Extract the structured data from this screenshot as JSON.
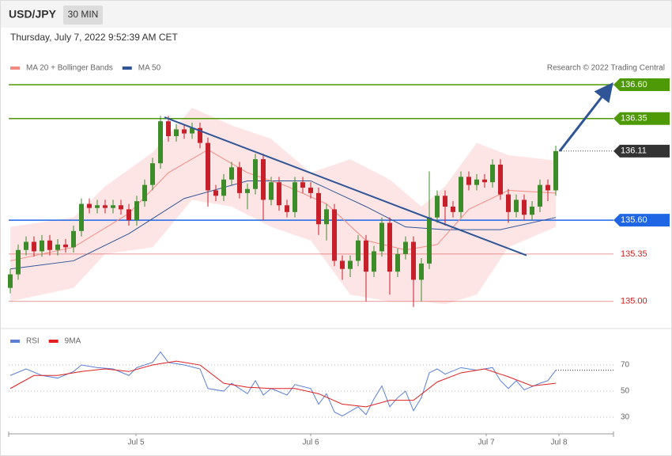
{
  "header": {
    "symbol": "USD/JPY",
    "interval": "30 MIN",
    "datetime": "Thursday, July 7, 2022 9:52:39 AM CET"
  },
  "chart_data": [
    {
      "type": "candlestick",
      "attribution": "Research © 2022 Trading Central",
      "legend": [
        {
          "name": "MA 20 + Bollinger Bands",
          "color": "#f28b82"
        },
        {
          "name": "MA 50",
          "color": "#2f5597"
        }
      ],
      "up_color": "#3c8c2a",
      "down_color": "#c8202a",
      "xlim": [
        -0.2,
        76.3
      ],
      "ylim": [
        134.8,
        136.67
      ],
      "ohlc": [
        [
          135.1,
          135.24,
          135.06,
          135.2
        ],
        [
          135.2,
          135.42,
          135.16,
          135.38
        ],
        [
          135.38,
          135.48,
          135.34,
          135.44
        ],
        [
          135.44,
          135.48,
          135.33,
          135.37
        ],
        [
          135.37,
          135.49,
          135.33,
          135.45
        ],
        [
          135.45,
          135.49,
          135.34,
          135.38
        ],
        [
          135.38,
          135.46,
          135.34,
          135.42
        ],
        [
          135.42,
          135.46,
          135.36,
          135.4
        ],
        [
          135.4,
          135.56,
          135.36,
          135.52
        ],
        [
          135.52,
          135.76,
          135.48,
          135.72
        ],
        [
          135.72,
          135.76,
          135.65,
          135.69
        ],
        [
          135.69,
          135.75,
          135.65,
          135.71
        ],
        [
          135.71,
          135.75,
          135.65,
          135.69
        ],
        [
          135.69,
          135.75,
          135.65,
          135.71
        ],
        [
          135.71,
          135.75,
          135.64,
          135.68
        ],
        [
          135.68,
          135.72,
          135.56,
          135.6
        ],
        [
          135.6,
          135.78,
          135.56,
          135.74
        ],
        [
          135.74,
          135.9,
          135.7,
          135.86
        ],
        [
          135.86,
          136.06,
          135.82,
          136.02
        ],
        [
          136.02,
          136.37,
          135.98,
          136.33
        ],
        [
          136.33,
          136.37,
          136.18,
          136.22
        ],
        [
          136.22,
          136.31,
          136.18,
          136.27
        ],
        [
          136.27,
          136.31,
          136.2,
          136.24
        ],
        [
          136.24,
          136.32,
          136.2,
          136.28
        ],
        [
          136.28,
          136.32,
          136.13,
          136.17
        ],
        [
          136.17,
          136.21,
          135.7,
          135.82
        ],
        [
          135.82,
          135.86,
          135.74,
          135.78
        ],
        [
          135.78,
          135.94,
          135.74,
          135.9
        ],
        [
          135.9,
          136.03,
          135.86,
          135.99
        ],
        [
          135.99,
          136.03,
          135.76,
          135.8
        ],
        [
          135.8,
          135.87,
          135.68,
          135.83
        ],
        [
          135.83,
          136.09,
          135.79,
          136.05
        ],
        [
          136.05,
          136.09,
          135.6,
          135.75
        ],
        [
          135.75,
          135.92,
          135.71,
          135.88
        ],
        [
          135.88,
          135.92,
          135.67,
          135.71
        ],
        [
          135.71,
          135.75,
          135.62,
          135.66
        ],
        [
          135.66,
          135.92,
          135.62,
          135.88
        ],
        [
          135.88,
          135.92,
          135.8,
          135.84
        ],
        [
          135.84,
          135.88,
          135.76,
          135.8
        ],
        [
          135.8,
          135.84,
          135.49,
          135.57
        ],
        [
          135.57,
          135.72,
          135.45,
          135.68
        ],
        [
          135.68,
          135.72,
          135.26,
          135.3
        ],
        [
          135.3,
          135.34,
          135.16,
          135.24
        ],
        [
          135.24,
          135.34,
          135.18,
          135.3
        ],
        [
          135.3,
          135.49,
          135.26,
          135.45
        ],
        [
          135.45,
          135.49,
          135.0,
          135.22
        ],
        [
          135.22,
          135.41,
          135.18,
          135.37
        ],
        [
          135.37,
          135.62,
          135.33,
          135.58
        ],
        [
          135.58,
          135.62,
          135.05,
          135.22
        ],
        [
          135.22,
          135.39,
          135.18,
          135.35
        ],
        [
          135.35,
          135.48,
          135.31,
          135.44
        ],
        [
          135.44,
          135.48,
          134.96,
          135.16
        ],
        [
          135.16,
          135.32,
          135.0,
          135.28
        ],
        [
          135.28,
          135.96,
          135.24,
          135.62
        ],
        [
          135.62,
          135.82,
          135.58,
          135.78
        ],
        [
          135.78,
          135.82,
          135.56,
          135.7
        ],
        [
          135.7,
          135.74,
          135.62,
          135.66
        ],
        [
          135.66,
          135.96,
          135.62,
          135.92
        ],
        [
          135.92,
          135.96,
          135.82,
          135.86
        ],
        [
          135.86,
          135.94,
          135.82,
          135.9
        ],
        [
          135.9,
          135.94,
          135.84,
          135.88
        ],
        [
          135.88,
          136.05,
          135.84,
          136.01
        ],
        [
          136.01,
          136.05,
          135.75,
          135.79
        ],
        [
          135.79,
          135.83,
          135.58,
          135.66
        ],
        [
          135.66,
          135.79,
          135.62,
          135.75
        ],
        [
          135.75,
          135.79,
          135.6,
          135.64
        ],
        [
          135.64,
          135.74,
          135.6,
          135.7
        ],
        [
          135.7,
          135.9,
          135.66,
          135.86
        ],
        [
          135.86,
          135.9,
          135.74,
          135.82
        ],
        [
          135.82,
          136.15,
          135.78,
          136.11
        ]
      ],
      "band": {
        "color": "#fde0e0",
        "x": [
          0,
          8,
          12,
          18,
          23,
          28,
          33,
          38,
          43,
          48,
          52,
          55,
          59,
          63,
          69
        ],
        "upper": [
          135.55,
          135.62,
          135.85,
          136.1,
          136.43,
          136.3,
          136.2,
          135.95,
          136.05,
          135.9,
          135.7,
          135.85,
          136.17,
          136.08,
          136.04
        ],
        "lower": [
          135.0,
          135.1,
          135.35,
          135.4,
          135.75,
          135.7,
          135.55,
          135.45,
          135.05,
          135.0,
          135.0,
          134.98,
          135.05,
          135.4,
          135.55
        ]
      },
      "ma20": {
        "color": "#f28b82",
        "x": [
          0,
          8,
          15,
          20,
          25,
          30,
          35,
          40,
          45,
          50,
          54,
          58,
          63,
          69
        ],
        "values": [
          135.3,
          135.4,
          135.65,
          135.95,
          136.12,
          135.95,
          135.85,
          135.72,
          135.45,
          135.38,
          135.42,
          135.68,
          135.82,
          135.8
        ]
      },
      "ma50": {
        "color": "#2f5597",
        "x": [
          0,
          8,
          15,
          22,
          30,
          38,
          45,
          50,
          55,
          62,
          69
        ],
        "values": [
          135.24,
          135.3,
          135.5,
          135.76,
          135.89,
          135.89,
          135.7,
          135.55,
          135.53,
          135.53,
          135.62
        ]
      },
      "trendlines": [
        {
          "color": "#2f5597",
          "x": [
            19.5,
            65.3
          ],
          "values": [
            136.36,
            135.34
          ],
          "arrow": false
        },
        {
          "color": "#2f5597",
          "x": [
            69.5,
            75.9
          ],
          "values": [
            136.11,
            136.59
          ],
          "arrow": true
        }
      ],
      "levels": [
        {
          "value": 136.6,
          "label": "136.60",
          "color": "#4e9a06",
          "tag": true
        },
        {
          "value": 136.35,
          "label": "136.35",
          "color": "#4e9a06",
          "tag": true
        },
        {
          "value": 136.11,
          "label": "136.11",
          "color": "#333333",
          "tag": true,
          "from_last": true
        },
        {
          "value": 135.6,
          "label": "135.60",
          "color": "#1f66e5",
          "tag": true
        },
        {
          "value": 135.35,
          "label": "135.35",
          "color": "#d02020",
          "tag": false
        },
        {
          "value": 135.0,
          "label": "135.00",
          "color": "#d02020",
          "tag": false
        }
      ]
    },
    {
      "type": "line",
      "xlim": [
        -0.2,
        76.3
      ],
      "ylim": [
        19,
        83
      ],
      "yticks": [
        30,
        50,
        70
      ],
      "grid": true,
      "xticks": [
        {
          "value": 15.9,
          "label": "Jul 5"
        },
        {
          "value": 38,
          "label": "Jul 6"
        },
        {
          "value": 60.2,
          "label": "Jul 7"
        },
        {
          "value": 69.4,
          "label": "Jul 8"
        }
      ],
      "series": [
        {
          "name": "RSI",
          "color": "#5b7fd6",
          "x": [
            0,
            2,
            4,
            6,
            8,
            9,
            11,
            13,
            15,
            16,
            18,
            19,
            20,
            22,
            24,
            25,
            27,
            28,
            30,
            31,
            32,
            33,
            35,
            36,
            38,
            39,
            40,
            41,
            42,
            44,
            45,
            46,
            47,
            48,
            49,
            50,
            51,
            52,
            53,
            54,
            55,
            57,
            59,
            61,
            62,
            63,
            64,
            65,
            67,
            68,
            69
          ],
          "values": [
            62,
            67,
            62,
            60,
            65,
            70,
            68,
            67,
            62,
            68,
            72,
            80,
            72,
            70,
            67,
            52,
            50,
            56,
            48,
            58,
            47,
            52,
            47,
            55,
            52,
            40,
            48,
            34,
            31,
            38,
            32,
            44,
            54,
            38,
            45,
            50,
            35,
            45,
            64,
            67,
            63,
            68,
            66,
            68,
            58,
            52,
            58,
            51,
            56,
            58,
            66
          ]
        },
        {
          "name": "9MA",
          "color": "#e02020",
          "x": [
            0,
            3,
            6,
            9,
            12,
            15,
            18,
            21,
            24,
            27,
            30,
            33,
            36,
            39,
            42,
            45,
            48,
            51,
            54,
            57,
            60,
            63,
            66,
            69
          ],
          "values": [
            52,
            62,
            62,
            65,
            67,
            65,
            70,
            73,
            70,
            56,
            53,
            52,
            52,
            48,
            40,
            38,
            43,
            43,
            57,
            64,
            67,
            61,
            54,
            56
          ]
        }
      ]
    }
  ]
}
